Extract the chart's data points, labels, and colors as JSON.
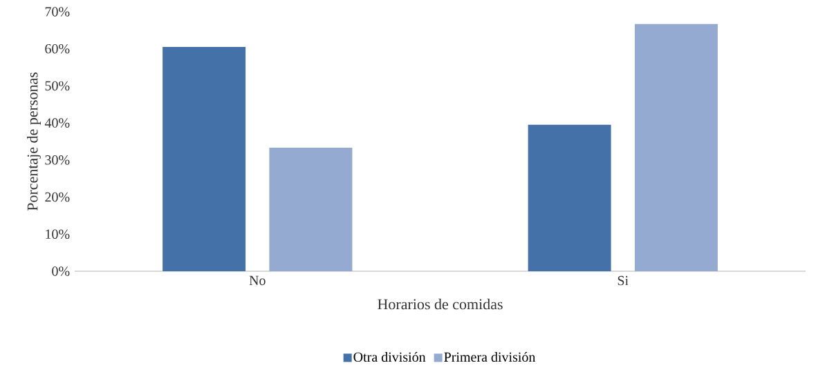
{
  "chart_data": {
    "type": "bar",
    "xlabel": "Horarios de comidas",
    "ylabel": "Porcentaje de personas",
    "categories": [
      "No",
      "Si"
    ],
    "series": [
      {
        "name": "Otra división",
        "color": "#4472a8",
        "values": [
          60.5,
          39.5
        ]
      },
      {
        "name": "Primera división",
        "color": "#95aad1",
        "values": [
          33.3,
          66.7
        ]
      }
    ],
    "ylim": [
      0,
      70
    ],
    "yticks": [
      {
        "value": 0,
        "label": "0%"
      },
      {
        "value": 10,
        "label": "10%"
      },
      {
        "value": 20,
        "label": "20%"
      },
      {
        "value": 30,
        "label": "30%"
      },
      {
        "value": 40,
        "label": "40%"
      },
      {
        "value": 50,
        "label": "50%"
      },
      {
        "value": 60,
        "label": "60%"
      },
      {
        "value": 70,
        "label": "70%"
      }
    ],
    "legend": "bottom"
  }
}
